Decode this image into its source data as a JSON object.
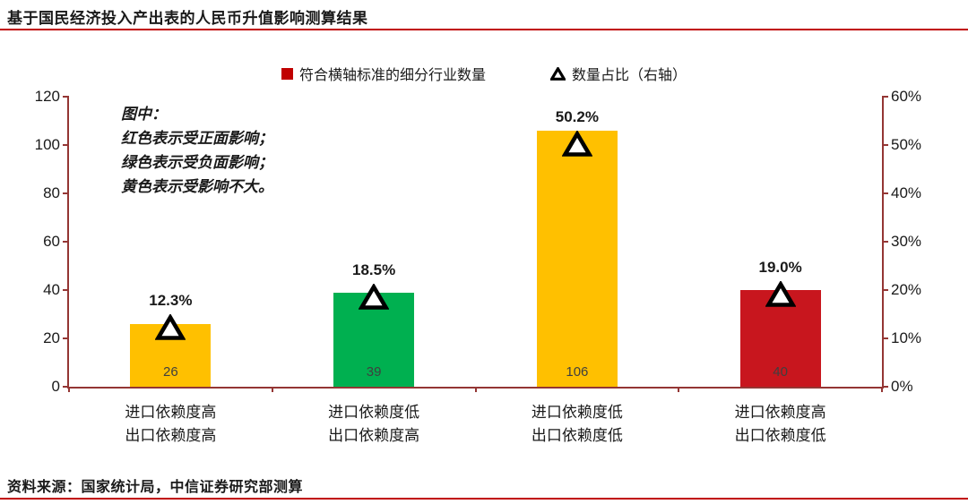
{
  "header": {
    "title": "基于国民经济投入产出表的人民币升值影响测算结果"
  },
  "legend": {
    "bars_label": "符合横轴标准的细分行业数量",
    "pct_label": "数量占比（右轴）"
  },
  "annotation": {
    "lines": [
      "图中：",
      "红色表示受正面影响；",
      "绿色表示受负面影响；",
      "黄色表示受影响不大。"
    ]
  },
  "footer": {
    "source": "资料来源：国家统计局，中信证券研究部测算"
  },
  "colors": {
    "accent_red": "#C00000",
    "axis": "#943634",
    "bar_yellow": "#FFC000",
    "bar_green": "#00B050",
    "bar_red": "#C8161E",
    "marker_stroke": "#000000",
    "marker_fill": "#FFFFFF"
  },
  "chart_data": {
    "type": "bar",
    "title": "基于国民经济投入产出表的人民币升值影响测算结果",
    "categories": [
      [
        "进口依赖度高",
        "出口依赖度高"
      ],
      [
        "进口依赖度低",
        "出口依赖度高"
      ],
      [
        "进口依赖度低",
        "出口依赖度低"
      ],
      [
        "进口依赖度高",
        "出口依赖度低"
      ]
    ],
    "series": [
      {
        "name": "符合横轴标准的细分行业数量",
        "axis": "left",
        "values": [
          26,
          39,
          106,
          40
        ],
        "value_labels": [
          "26",
          "39",
          "106",
          "40"
        ],
        "bar_colors": [
          "#FFC000",
          "#00B050",
          "#FFC000",
          "#C8161E"
        ]
      },
      {
        "name": "数量占比（右轴）",
        "axis": "right",
        "values_pct": [
          12.3,
          18.5,
          50.2,
          19.0
        ],
        "labels": [
          "12.3%",
          "18.5%",
          "50.2%",
          "19.0%"
        ]
      }
    ],
    "left_axis": {
      "min": 0,
      "max": 120,
      "ticks": [
        0,
        20,
        40,
        60,
        80,
        100,
        120
      ]
    },
    "right_axis": {
      "min": 0,
      "max": 60,
      "tick_labels": [
        "0%",
        "10%",
        "20%",
        "30%",
        "40%",
        "50%",
        "60%"
      ]
    },
    "grid": false,
    "legend_position": "top"
  }
}
